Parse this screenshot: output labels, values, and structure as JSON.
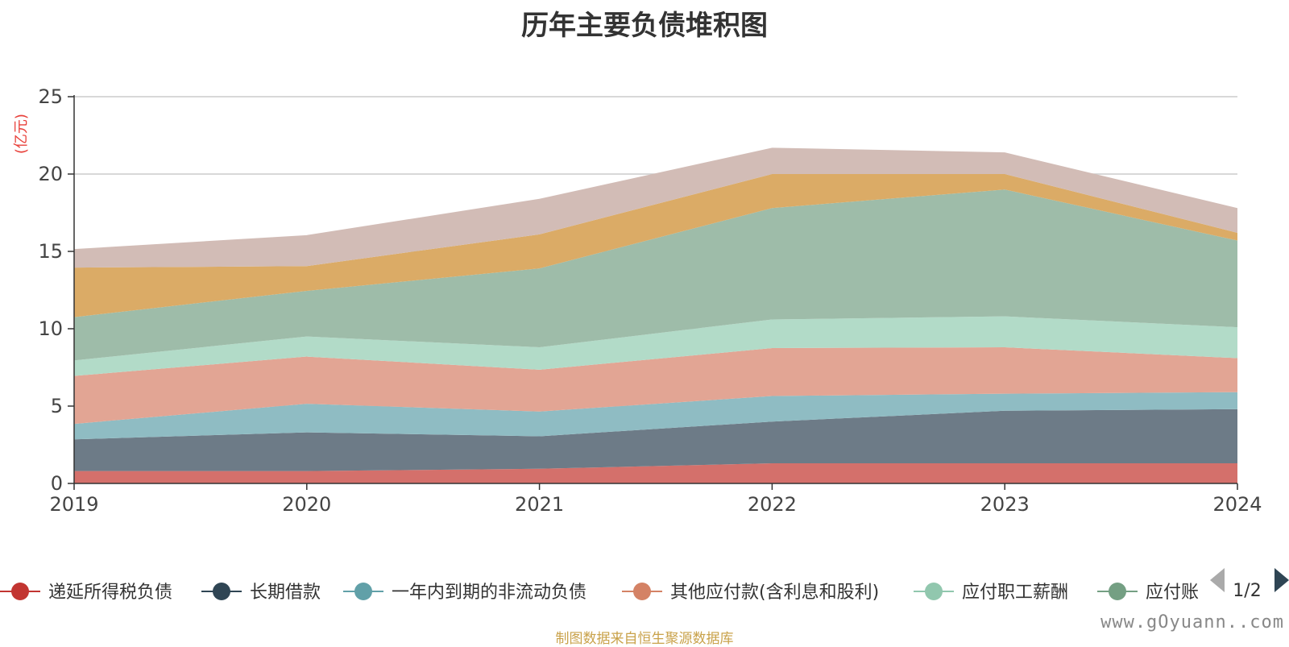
{
  "chart_data": {
    "type": "area",
    "stacked": true,
    "title": "历年主要负债堆积图",
    "unit_label": "(亿元)",
    "x": [
      "2019",
      "2020",
      "2021",
      "2022",
      "2023",
      "2024"
    ],
    "ylim": [
      0,
      25
    ],
    "yticks": [
      0,
      5,
      10,
      15,
      20,
      25
    ],
    "grid": true,
    "series": [
      {
        "name": "递延所得税负债",
        "color": "#c23531",
        "fill": "#d4706b",
        "values": [
          0.8,
          0.8,
          0.95,
          1.3,
          1.3,
          1.3
        ]
      },
      {
        "name": "长期借款",
        "color": "#2f4554",
        "fill": "#6d7b87",
        "values": [
          2.05,
          2.5,
          2.1,
          2.7,
          3.4,
          3.5
        ]
      },
      {
        "name": "一年内到期的非流动负债",
        "color": "#61a0a8",
        "fill": "#8fbcc3",
        "values": [
          1.0,
          1.85,
          1.6,
          1.65,
          1.1,
          1.1
        ]
      },
      {
        "name": "其他应付款(含利息和股利)",
        "color": "#d48265",
        "fill": "#e2a594",
        "values": [
          3.1,
          3.05,
          2.7,
          3.1,
          3.0,
          2.2
        ]
      },
      {
        "name": "应付职工薪酬",
        "color": "#91c7ae",
        "fill": "#b2dbc8",
        "values": [
          1.0,
          1.3,
          1.45,
          1.85,
          2.0,
          2.0
        ]
      },
      {
        "name": "应付账款",
        "color": "#749f83",
        "fill": "#9ebca9",
        "values": [
          2.8,
          2.95,
          5.1,
          7.2,
          8.2,
          5.6
        ]
      },
      {
        "name": "",
        "color": "#ca8622",
        "fill": "#dbab66",
        "values": [
          3.2,
          1.6,
          2.2,
          2.2,
          1.0,
          0.5
        ]
      },
      {
        "name": "",
        "color": "#bda29a",
        "fill": "#d2bcb6",
        "values": [
          1.2,
          2.0,
          2.3,
          1.7,
          1.4,
          1.6
        ]
      }
    ],
    "legend": {
      "placement": "bottom",
      "visible_items": [
        "递延所得税负债",
        "长期借款",
        "一年内到期的非流动负债",
        "其他应付款(含利息和股利)",
        "应付职工薪酬",
        "应付账"
      ],
      "page": "1/2"
    }
  },
  "source_note": "制图数据来自恒生聚源数据库",
  "watermark": "www.gOyuann..com"
}
